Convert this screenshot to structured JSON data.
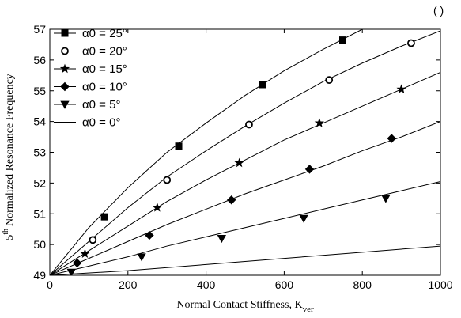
{
  "corner_label": "( )",
  "chart_data": {
    "type": "line",
    "title": "",
    "xlabel": "Normal Contact Stiffness, K",
    "xlabel_subscript": "ver",
    "ylabel_super": "th",
    "ylabel_lead": "5",
    "ylabel": "Normalized Resonance Frequency",
    "xlim": [
      0,
      1000
    ],
    "ylim": [
      49,
      57
    ],
    "xticks": [
      0,
      200,
      400,
      600,
      800,
      1000
    ],
    "yticks": [
      49,
      50,
      51,
      52,
      53,
      54,
      55,
      56,
      57
    ],
    "grid": false,
    "legend_position": "top-left",
    "series": [
      {
        "name": "α0 = 25°",
        "marker": "square",
        "line_x": [
          0,
          100,
          200,
          300,
          400,
          500,
          600,
          700,
          800
        ],
        "line_y": [
          49.0,
          50.55,
          51.85,
          53.0,
          53.95,
          54.85,
          55.65,
          56.35,
          57.0
        ],
        "marker_x": [
          140,
          330,
          545,
          750
        ],
        "marker_y": [
          50.9,
          53.2,
          55.2,
          56.65
        ]
      },
      {
        "name": "α0 = 20°",
        "marker": "circle",
        "line_x": [
          0,
          100,
          200,
          300,
          400,
          500,
          600,
          700,
          800,
          900,
          1000
        ],
        "line_y": [
          49.0,
          50.1,
          51.2,
          52.2,
          53.05,
          53.85,
          54.6,
          55.3,
          55.9,
          56.45,
          56.95
        ],
        "marker_x": [
          110,
          300,
          510,
          715,
          925
        ],
        "marker_y": [
          50.15,
          52.1,
          53.9,
          55.35,
          56.55
        ]
      },
      {
        "name": "α0 = 15°",
        "marker": "star",
        "line_x": [
          0,
          100,
          200,
          300,
          400,
          500,
          600,
          700,
          800,
          900,
          1000
        ],
        "line_y": [
          49.0,
          49.8,
          50.6,
          51.4,
          52.1,
          52.75,
          53.4,
          53.95,
          54.5,
          55.05,
          55.6
        ],
        "marker_x": [
          90,
          275,
          485,
          690,
          900
        ],
        "marker_y": [
          49.7,
          51.2,
          52.65,
          53.95,
          55.05
        ]
      },
      {
        "name": "α0 = 10°",
        "marker": "diamond",
        "line_x": [
          0,
          100,
          200,
          300,
          400,
          500,
          600,
          700,
          800,
          900,
          1000
        ],
        "line_y": [
          49.0,
          49.55,
          50.1,
          50.65,
          51.15,
          51.65,
          52.1,
          52.55,
          53.05,
          53.5,
          54.0
        ],
        "marker_x": [
          70,
          255,
          465,
          665,
          875
        ],
        "marker_y": [
          49.4,
          50.3,
          51.45,
          52.45,
          53.45
        ]
      },
      {
        "name": "α0 = 5°",
        "marker": "triangle-down",
        "line_x": [
          0,
          100,
          200,
          300,
          400,
          500,
          600,
          700,
          800,
          900,
          1000
        ],
        "line_y": [
          49.0,
          49.3,
          49.6,
          49.95,
          50.25,
          50.55,
          50.85,
          51.15,
          51.45,
          51.75,
          52.05
        ],
        "marker_x": [
          55,
          235,
          440,
          650,
          860
        ],
        "marker_y": [
          49.1,
          49.6,
          50.2,
          50.85,
          51.5
        ]
      },
      {
        "name": "α0 = 0°",
        "marker": "none",
        "line_x": [
          0,
          200,
          400,
          600,
          800,
          1000
        ],
        "line_y": [
          49.0,
          49.15,
          49.35,
          49.55,
          49.75,
          49.95
        ],
        "marker_x": [],
        "marker_y": []
      }
    ]
  }
}
